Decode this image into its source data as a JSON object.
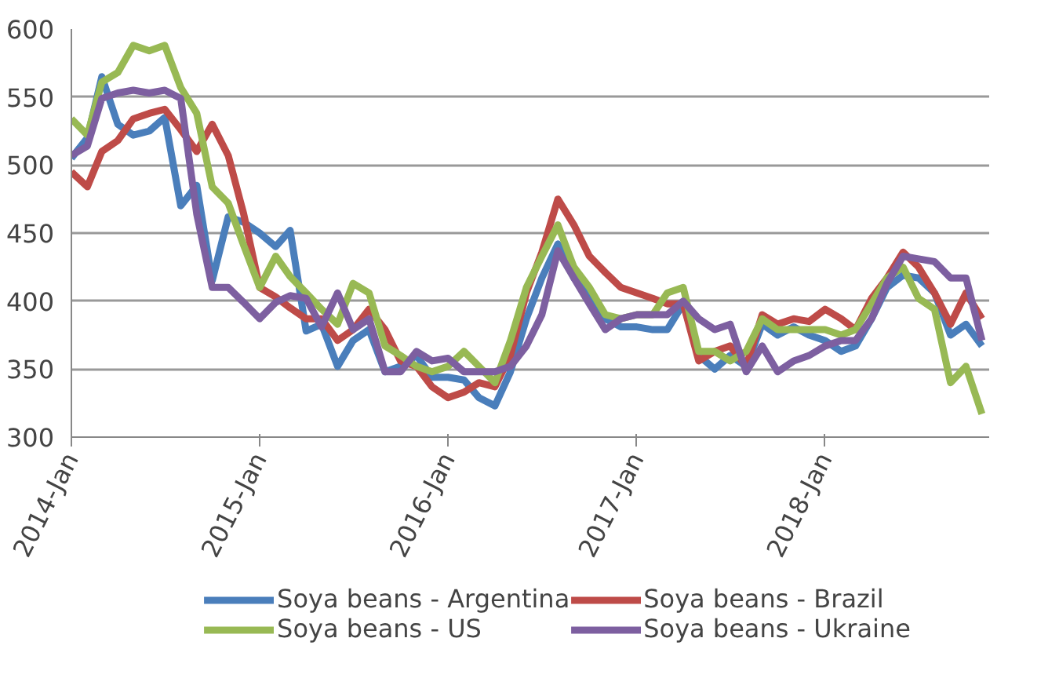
{
  "chart_data": {
    "type": "line",
    "x": [
      "2014-01",
      "2014-02",
      "2014-03",
      "2014-04",
      "2014-05",
      "2014-06",
      "2014-07",
      "2014-08",
      "2014-09",
      "2014-10",
      "2014-11",
      "2014-12",
      "2015-01",
      "2015-02",
      "2015-03",
      "2015-04",
      "2015-05",
      "2015-06",
      "2015-07",
      "2015-08",
      "2015-09",
      "2015-10",
      "2015-11",
      "2015-12",
      "2016-01",
      "2016-02",
      "2016-03",
      "2016-04",
      "2016-05",
      "2016-06",
      "2016-07",
      "2016-08",
      "2016-09",
      "2016-10",
      "2016-11",
      "2016-12",
      "2017-01",
      "2017-02",
      "2017-03",
      "2017-04",
      "2017-05",
      "2017-06",
      "2017-07",
      "2017-08",
      "2017-09",
      "2017-10",
      "2017-11",
      "2017-12",
      "2018-01",
      "2018-02",
      "2018-03",
      "2018-04",
      "2018-05",
      "2018-06",
      "2018-07",
      "2018-08",
      "2018-09",
      "2018-10",
      "2018-11"
    ],
    "series": [
      {
        "name": "Soya beans - Argentina",
        "color": "#4a7ebb",
        "values": [
          505,
          520,
          565,
          530,
          522,
          525,
          535,
          470,
          485,
          415,
          462,
          458,
          450,
          440,
          452,
          378,
          383,
          352,
          371,
          379,
          348,
          352,
          360,
          344,
          344,
          342,
          329,
          323,
          348,
          387,
          417,
          442,
          417,
          406,
          387,
          381,
          381,
          379,
          379,
          398,
          360,
          350,
          360,
          352,
          383,
          375,
          381,
          375,
          371,
          363,
          367,
          387,
          410,
          419,
          417,
          406,
          375,
          383,
          367
        ]
      },
      {
        "name": "Soya beans - Brazil",
        "color": "#be4b48",
        "values": [
          495,
          484,
          510,
          518,
          534,
          538,
          541,
          526,
          510,
          530,
          507,
          464,
          410,
          403,
          395,
          387,
          387,
          371,
          379,
          394,
          379,
          356,
          352,
          337,
          329,
          333,
          340,
          337,
          360,
          406,
          436,
          475,
          456,
          433,
          421,
          410,
          406,
          402,
          398,
          398,
          356,
          363,
          367,
          352,
          390,
          383,
          387,
          385,
          394,
          387,
          379,
          402,
          417,
          436,
          425,
          406,
          383,
          406,
          387
        ]
      },
      {
        "name": "Soya beans - US",
        "color": "#98b954",
        "values": [
          534,
          522,
          561,
          568,
          588,
          584,
          588,
          557,
          538,
          484,
          472,
          441,
          410,
          433,
          418,
          406,
          394,
          383,
          413,
          406,
          367,
          360,
          352,
          348,
          352,
          363,
          352,
          340,
          371,
          410,
          433,
          456,
          425,
          410,
          390,
          387,
          390,
          390,
          406,
          410,
          363,
          363,
          356,
          363,
          387,
          379,
          379,
          379,
          379,
          375,
          379,
          398,
          417,
          425,
          402,
          394,
          340,
          352,
          317
        ]
      },
      {
        "name": "Soya beans - Ukraine",
        "color": "#7d5fa0",
        "values": [
          507,
          514,
          549,
          553,
          555,
          553,
          555,
          549,
          464,
          410,
          410,
          399,
          387,
          399,
          404,
          402,
          381,
          406,
          379,
          387,
          348,
          348,
          363,
          356,
          358,
          348,
          348,
          348,
          352,
          367,
          390,
          437,
          417,
          398,
          379,
          387,
          390,
          390,
          390,
          400,
          387,
          379,
          383,
          348,
          367,
          348,
          356,
          360,
          367,
          371,
          371,
          387,
          413,
          433,
          431,
          429,
          417,
          417,
          371
        ]
      }
    ],
    "xlim": [
      "2014-01",
      "2018-11-15"
    ],
    "xticks": [
      {
        "value": "2014-01",
        "label": "2014-Jan"
      },
      {
        "value": "2015-01",
        "label": "2015-Jan"
      },
      {
        "value": "2016-01",
        "label": "2016-Jan"
      },
      {
        "value": "2017-01",
        "label": "2017-Jan"
      },
      {
        "value": "2018-01",
        "label": "2018-Jan"
      }
    ],
    "ylim": [
      300,
      600
    ],
    "yticks": [
      300,
      350,
      400,
      450,
      500,
      550,
      600
    ],
    "grid": "y",
    "legend": "bottom",
    "marker": "none",
    "line_style": "solid"
  }
}
